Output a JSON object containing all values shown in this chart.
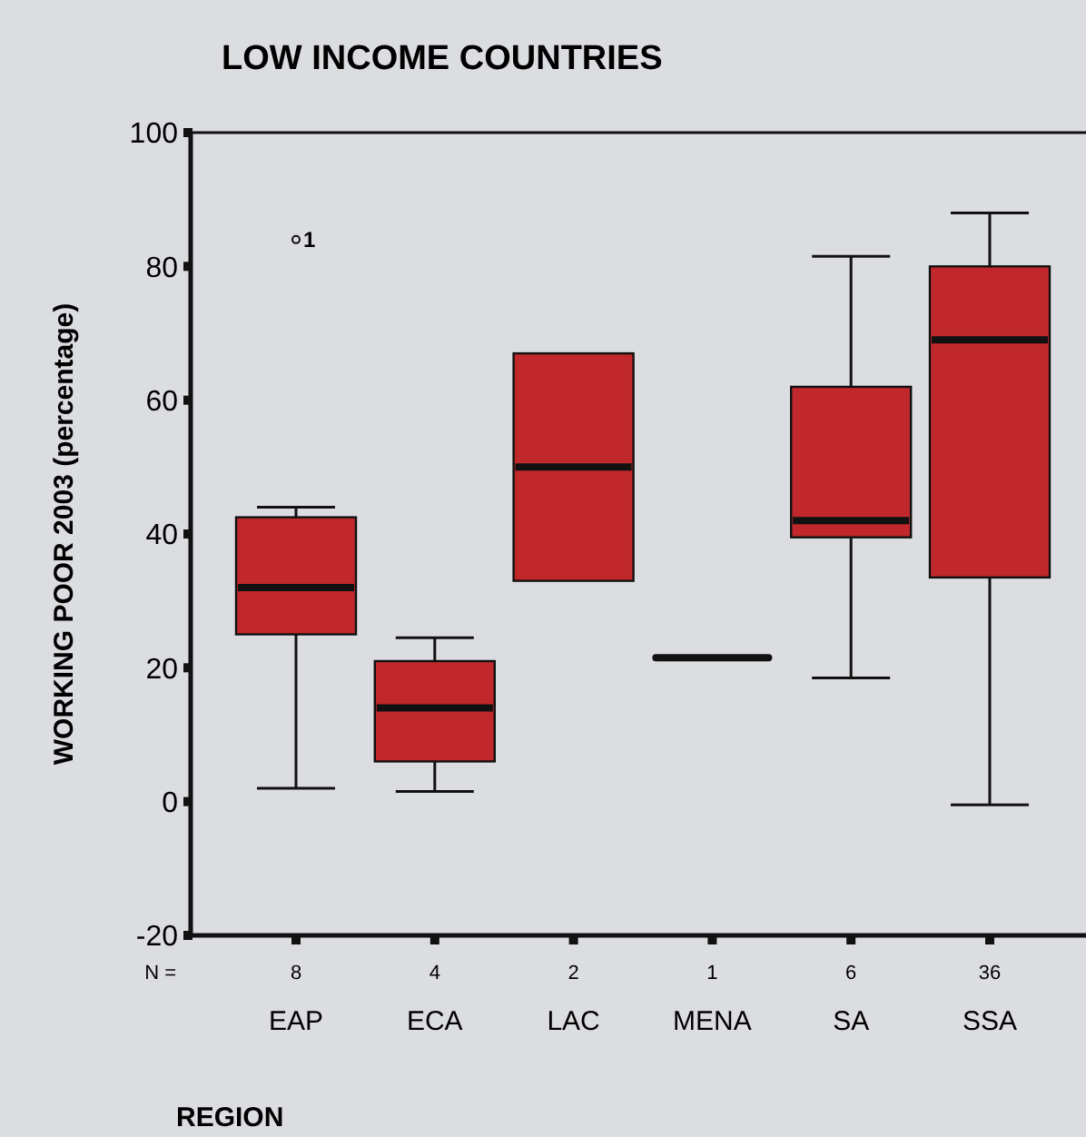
{
  "chart_data": {
    "type": "box",
    "title": "LOW INCOME COUNTRIES",
    "xlabel": "REGION",
    "ylabel": "WORKING POOR 2003 (percentage)",
    "categories": [
      "EAP",
      "ECA",
      "LAC",
      "MENA",
      "SA",
      "SSA"
    ],
    "ylim": [
      -20,
      100
    ],
    "yticks": [
      -20,
      0,
      20,
      40,
      60,
      80,
      100
    ],
    "colors": [
      "#c0282c",
      "#c0282c",
      "#c0282c",
      "#111111",
      "#c0282c",
      "#c0282c"
    ],
    "boxes": [
      {
        "low": 2,
        "q1": 25,
        "median": 32,
        "q3": 42.5,
        "high": 44,
        "outliers": [
          84
        ]
      },
      {
        "low": 1.5,
        "q1": 6,
        "median": 14,
        "q3": 21,
        "high": 24.5
      },
      {
        "low": 33,
        "q1": 33,
        "median": 50,
        "q3": 67,
        "high": 67
      },
      {
        "low": 21.5,
        "q1": 21.5,
        "median": 21.5,
        "q3": 21.5,
        "high": 21.5
      },
      {
        "low": 18.5,
        "q1": 39.5,
        "median": 42,
        "q3": 62,
        "high": 81.5
      },
      {
        "low": -0.5,
        "q1": 33.5,
        "median": 69,
        "q3": 80,
        "high": 88
      }
    ],
    "annotations": [
      "1",
      "N =",
      "8",
      "4",
      "2",
      "1",
      "6",
      "36"
    ]
  }
}
